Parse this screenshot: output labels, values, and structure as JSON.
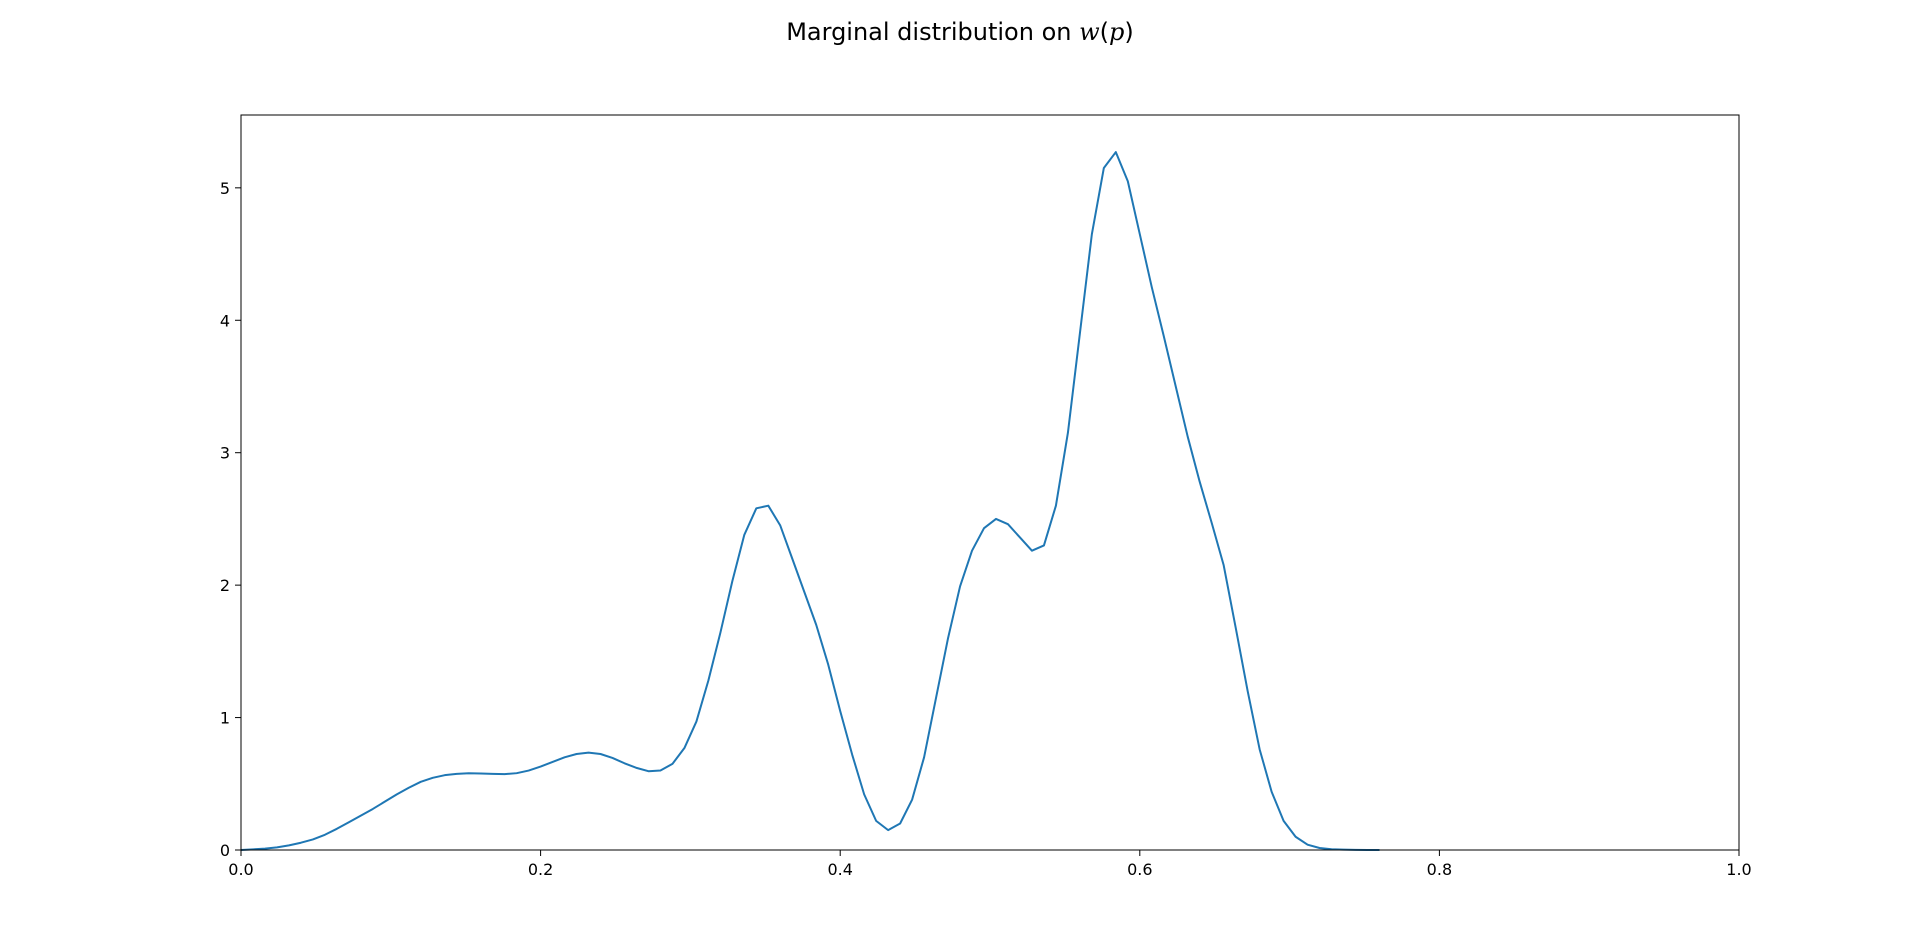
{
  "chart_data": {
    "type": "line",
    "title_prefix": "Marginal distribution on ",
    "title_math": "w",
    "title_math_arg": "p",
    "xlabel": "",
    "ylabel": "",
    "xlim": [
      0.0,
      1.0
    ],
    "ylim": [
      0.0,
      5.55
    ],
    "xticks": [
      0.0,
      0.2,
      0.4,
      0.6,
      0.8,
      1.0
    ],
    "xtick_labels": [
      "0.0",
      "0.2",
      "0.4",
      "0.6",
      "0.8",
      "1.0"
    ],
    "yticks": [
      0,
      1,
      2,
      3,
      4,
      5
    ],
    "ytick_labels": [
      "0",
      "1",
      "2",
      "3",
      "4",
      "5"
    ],
    "grid": false,
    "legend": false,
    "line_color": "#1f77b4",
    "series": [
      {
        "x": [
          0.0,
          0.008,
          0.016,
          0.024,
          0.032,
          0.04,
          0.048,
          0.056,
          0.064,
          0.072,
          0.08,
          0.088,
          0.096,
          0.104,
          0.112,
          0.12,
          0.128,
          0.136,
          0.144,
          0.152,
          0.16,
          0.168,
          0.176,
          0.184,
          0.192,
          0.2,
          0.208,
          0.216,
          0.224,
          0.232,
          0.24,
          0.248,
          0.256,
          0.264,
          0.272,
          0.28,
          0.288,
          0.296,
          0.304,
          0.312,
          0.32,
          0.328,
          0.336,
          0.344,
          0.352,
          0.36,
          0.368,
          0.376,
          0.384,
          0.392,
          0.4,
          0.408,
          0.416,
          0.424,
          0.432,
          0.44,
          0.448,
          0.456,
          0.464,
          0.472,
          0.48,
          0.488,
          0.496,
          0.504,
          0.512,
          0.52,
          0.528,
          0.536,
          0.544,
          0.552,
          0.56,
          0.568,
          0.576,
          0.584,
          0.592,
          0.6,
          0.608,
          0.616,
          0.624,
          0.632,
          0.64,
          0.648,
          0.656,
          0.664,
          0.672,
          0.68,
          0.688,
          0.696,
          0.704,
          0.712,
          0.72,
          0.728,
          0.736,
          0.744,
          0.752,
          0.76
        ],
        "y": [
          0.0,
          0.005,
          0.01,
          0.02,
          0.035,
          0.055,
          0.08,
          0.115,
          0.16,
          0.21,
          0.26,
          0.31,
          0.365,
          0.42,
          0.47,
          0.515,
          0.545,
          0.565,
          0.575,
          0.58,
          0.578,
          0.575,
          0.573,
          0.58,
          0.6,
          0.63,
          0.665,
          0.7,
          0.725,
          0.735,
          0.725,
          0.695,
          0.655,
          0.62,
          0.595,
          0.6,
          0.65,
          0.77,
          0.97,
          1.28,
          1.64,
          2.03,
          2.38,
          2.58,
          2.6,
          2.45,
          2.2,
          1.95,
          1.7,
          1.4,
          1.05,
          0.72,
          0.42,
          0.22,
          0.15,
          0.2,
          0.38,
          0.7,
          1.15,
          1.6,
          1.99,
          2.26,
          2.43,
          2.5,
          2.46,
          2.36,
          2.26,
          2.3,
          2.6,
          3.15,
          3.9,
          4.65,
          5.15,
          5.27,
          5.05,
          4.65,
          4.25,
          3.88,
          3.5,
          3.12,
          2.78,
          2.47,
          2.15,
          1.68,
          1.2,
          0.76,
          0.44,
          0.22,
          0.1,
          0.04,
          0.015,
          0.006,
          0.003,
          0.001,
          0.0,
          0.0
        ]
      }
    ]
  }
}
